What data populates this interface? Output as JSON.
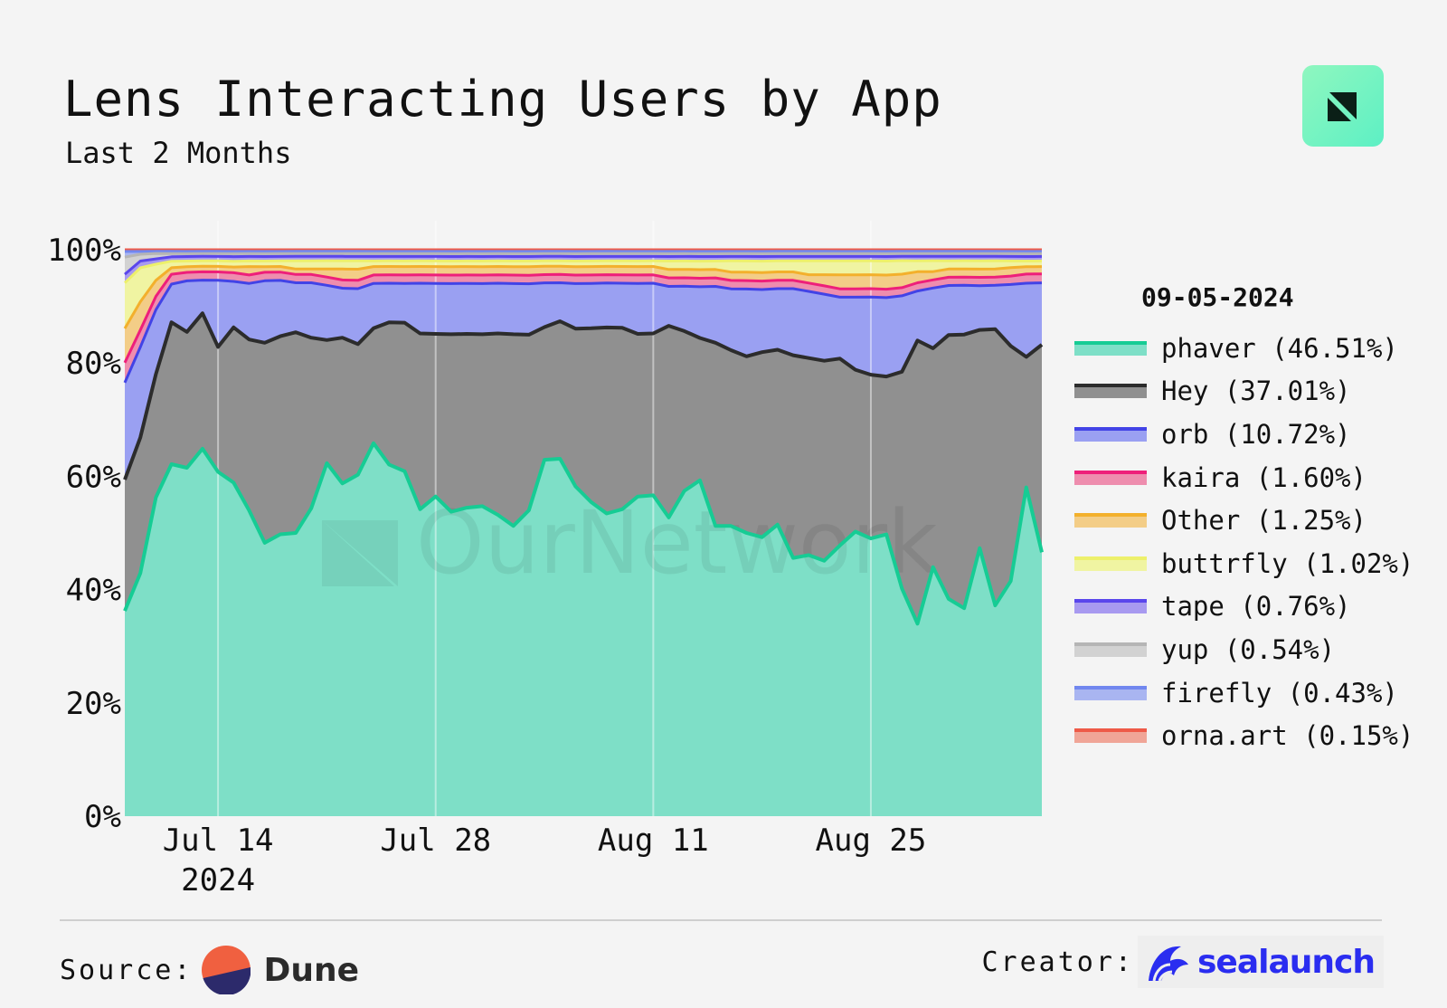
{
  "header": {
    "title": "Lens Interacting Users by App",
    "subtitle": "Last 2 Months"
  },
  "chart_data": {
    "type": "area",
    "stacked": true,
    "normalized": true,
    "watermark": "OurNetwork",
    "y_ticks": [
      "0%",
      "20%",
      "40%",
      "60%",
      "80%",
      "100%"
    ],
    "ylim": [
      0,
      100
    ],
    "x_start": "2024-07-08",
    "x_end": "2024-09-05",
    "x_ticks": [
      {
        "day": 6,
        "label": "Jul 14",
        "sub": "2024"
      },
      {
        "day": 20,
        "label": "Jul 28",
        "sub": ""
      },
      {
        "day": 34,
        "label": "Aug 11",
        "sub": ""
      },
      {
        "day": 48,
        "label": "Aug 25",
        "sub": ""
      }
    ],
    "legend_title": "09-05-2024",
    "series": [
      {
        "name": "phaver",
        "label": "phaver (46.51%)",
        "line": "#16cc94",
        "fill": "#7edfc7",
        "values": [
          36,
          43,
          59.5,
          64.5,
          61.5,
          66.5,
          62,
          58,
          54.5,
          48.5,
          50.5,
          51.5,
          56,
          64.5,
          60.5,
          61.5,
          66.5,
          63,
          61.5,
          55,
          57,
          54,
          55,
          55,
          54,
          51.5,
          54,
          64.5,
          65,
          58.5,
          56,
          54.5,
          55,
          57,
          57.5,
          53,
          58,
          59,
          51.5,
          52,
          50.5,
          49,
          52.5,
          46.5,
          47,
          46,
          48.5,
          51,
          50,
          50,
          42,
          35,
          45.5,
          39.5,
          38,
          48.5,
          38.5,
          42,
          58,
          47
        ]
      },
      {
        "name": "Hey",
        "label": "Hey (37.01%)",
        "line": "#2c2c2c",
        "fill": "#909090",
        "values": [
          23,
          24,
          23,
          26,
          24,
          24.5,
          22.5,
          27,
          30.5,
          35.5,
          35.5,
          36.5,
          31,
          22.5,
          26.5,
          23.5,
          20.5,
          25.5,
          26.5,
          31.5,
          29,
          31.5,
          31,
          30.5,
          32.5,
          34,
          31,
          24,
          25,
          28,
          31,
          33.5,
          32.5,
          29,
          29,
          34,
          28.5,
          25,
          32.5,
          31.5,
          31.5,
          32.5,
          31.5,
          36.5,
          35.5,
          36,
          33.5,
          29,
          29.5,
          28,
          40,
          51.5,
          40,
          48,
          50,
          39.5,
          50.5,
          42,
          23,
          37
        ]
      },
      {
        "name": "orb",
        "label": "orb (10.72%)",
        "line": "#4243e6",
        "fill": "#9aa0f2",
        "values": [
          17,
          16,
          12,
          7,
          9,
          6,
          12,
          8,
          10,
          11,
          10,
          9,
          10,
          10,
          9,
          10,
          8,
          7,
          7,
          9,
          9,
          9,
          9,
          9,
          9,
          9,
          9,
          8,
          7,
          8,
          8,
          8,
          8,
          9,
          9,
          7,
          8,
          9,
          10,
          11,
          12,
          11,
          11,
          12,
          12,
          12,
          11,
          13,
          14,
          14,
          14,
          9,
          11,
          9,
          9,
          8,
          8,
          11,
          13,
          11
        ]
      },
      {
        "name": "kaira",
        "label": "kaira (1.60%)",
        "line": "#ee1f7a",
        "fill": "#ee8dae",
        "values": [
          3.5,
          3,
          2.5,
          1.8,
          1.5,
          1.5,
          1.5,
          1.5,
          1.5,
          1.5,
          1.5,
          1.5,
          1.5,
          1.5,
          1.5,
          1.5,
          1.5,
          1.5,
          1.5,
          1.5,
          1.5,
          1.5,
          1.5,
          1.5,
          1.5,
          1.5,
          1.5,
          1.5,
          1.5,
          1.5,
          1.5,
          1.5,
          1.5,
          1.5,
          1.5,
          1.5,
          1.5,
          1.5,
          1.5,
          1.5,
          1.5,
          1.5,
          1.5,
          1.5,
          1.5,
          1.5,
          1.5,
          1.5,
          1.5,
          1.5,
          1.5,
          1.5,
          1.5,
          1.5,
          1.5,
          1.5,
          1.5,
          1.5,
          1.6,
          1.6
        ]
      },
      {
        "name": "Other",
        "label": "Other (1.25%)",
        "line": "#f3b02c",
        "fill": "#f3cd87",
        "values": [
          6,
          5,
          3,
          1.2,
          1,
          1,
          1,
          1,
          1.5,
          1,
          1,
          1,
          1,
          1.5,
          2,
          2,
          1.5,
          1.5,
          1.5,
          1.5,
          1.5,
          1.5,
          1.5,
          1.5,
          1.5,
          1.5,
          1.5,
          1.5,
          1.5,
          1.5,
          1.5,
          1.5,
          1.5,
          1.5,
          1.5,
          1.5,
          1.5,
          1.5,
          1.5,
          1.5,
          1.5,
          1.5,
          1.5,
          1.5,
          1.5,
          2,
          2.5,
          2.5,
          2.5,
          2.5,
          2.5,
          2,
          1.5,
          1.5,
          1.5,
          1.5,
          1.5,
          1.5,
          1.3,
          1.3
        ]
      },
      {
        "name": "buttrfly",
        "label": "buttrfly (1.02%)",
        "line": "#edf06b",
        "fill": "#f0f4a2",
        "values": [
          8,
          6,
          3,
          1.2,
          1,
          1,
          1,
          1,
          1,
          1,
          1,
          1.5,
          1.5,
          1.5,
          1.5,
          1.5,
          1,
          1,
          1,
          1,
          1,
          1,
          1,
          1,
          1,
          1,
          1,
          1,
          1,
          1,
          1,
          1,
          1,
          1,
          1,
          1.5,
          1.5,
          1.5,
          1.5,
          2,
          2,
          2,
          2,
          2,
          2.5,
          2.5,
          2.5,
          2.5,
          2.5,
          2.5,
          2.5,
          2,
          2,
          1.5,
          1.5,
          1.5,
          1.5,
          1.2,
          1,
          1
        ]
      },
      {
        "name": "tape",
        "label": "tape (0.76%)",
        "line": "#5a46ec",
        "fill": "#a89af0",
        "values": [
          1.5,
          1.2,
          1,
          0.8,
          0.8,
          0.8,
          0.8,
          0.8,
          0.8,
          0.8,
          0.8,
          0.8,
          0.8,
          0.8,
          0.8,
          0.8,
          0.8,
          0.8,
          0.8,
          0.8,
          0.8,
          0.8,
          0.8,
          0.8,
          0.8,
          0.8,
          0.8,
          0.8,
          0.8,
          0.8,
          0.8,
          0.8,
          0.8,
          0.8,
          0.8,
          0.8,
          0.8,
          0.8,
          0.8,
          0.8,
          0.8,
          0.8,
          0.8,
          0.8,
          0.8,
          0.8,
          0.8,
          0.8,
          0.8,
          0.8,
          0.8,
          0.8,
          0.8,
          0.8,
          0.8,
          0.8,
          0.8,
          0.8,
          0.8,
          0.8
        ]
      },
      {
        "name": "yup",
        "label": "yup (0.54%)",
        "line": "#b5b5b5",
        "fill": "#d2d2d2",
        "values": [
          3,
          1.2,
          1,
          0.6,
          0.5,
          0.5,
          0.5,
          0.5,
          0.5,
          0.5,
          0.5,
          0.5,
          0.5,
          0.5,
          0.5,
          0.5,
          0.5,
          0.5,
          0.5,
          0.5,
          0.5,
          0.5,
          0.5,
          0.5,
          0.5,
          0.5,
          0.5,
          0.5,
          0.5,
          0.5,
          0.5,
          0.5,
          0.5,
          0.5,
          0.5,
          0.5,
          0.5,
          0.5,
          0.5,
          0.5,
          0.5,
          0.5,
          0.5,
          0.5,
          0.5,
          0.5,
          0.5,
          0.5,
          0.5,
          0.5,
          0.5,
          0.5,
          0.5,
          0.5,
          0.5,
          0.5,
          0.5,
          0.5,
          0.5,
          0.5
        ]
      },
      {
        "name": "firefly",
        "label": "firefly (0.43%)",
        "line": "#7187ef",
        "fill": "#a9b5f1",
        "values": [
          1,
          0.5,
          0.4,
          0.4,
          0.4,
          0.4,
          0.4,
          0.4,
          0.4,
          0.4,
          0.4,
          0.4,
          0.4,
          0.4,
          0.4,
          0.4,
          0.4,
          0.4,
          0.4,
          0.4,
          0.4,
          0.4,
          0.4,
          0.4,
          0.4,
          0.4,
          0.4,
          0.4,
          0.4,
          0.4,
          0.4,
          0.4,
          0.4,
          0.4,
          0.4,
          0.4,
          0.4,
          0.4,
          0.4,
          0.4,
          0.4,
          0.4,
          0.4,
          0.4,
          0.4,
          0.4,
          0.4,
          0.4,
          0.4,
          0.4,
          0.4,
          0.4,
          0.4,
          0.4,
          0.4,
          0.4,
          0.4,
          0.4,
          0.4,
          0.4
        ]
      },
      {
        "name": "orna.art",
        "label": "orna.art (0.15%)",
        "line": "#ee5a48",
        "fill": "#f0a597",
        "values": [
          0.3,
          0.3,
          0.3,
          0.3,
          0.3,
          0.3,
          0.3,
          0.3,
          0.3,
          0.3,
          0.3,
          0.3,
          0.3,
          0.3,
          0.3,
          0.3,
          0.3,
          0.3,
          0.3,
          0.3,
          0.3,
          0.3,
          0.3,
          0.3,
          0.3,
          0.3,
          0.3,
          0.3,
          0.3,
          0.3,
          0.3,
          0.3,
          0.3,
          0.3,
          0.3,
          0.3,
          0.3,
          0.3,
          0.3,
          0.3,
          0.3,
          0.3,
          0.3,
          0.3,
          0.3,
          0.3,
          0.3,
          0.3,
          0.3,
          0.3,
          0.3,
          0.3,
          0.3,
          0.3,
          0.3,
          0.3,
          0.3,
          0.3,
          0.3,
          0.3
        ]
      }
    ]
  },
  "footer": {
    "source_label": "Source:",
    "source_name": "Dune",
    "creator_label": "Creator:",
    "creator_name": "sealaunch"
  },
  "colors": {
    "background": "#f4f4f4",
    "sealaunch_blue": "#2a2df0",
    "dune_orange": "#f06040",
    "dune_navy": "#2c2a6b"
  },
  "icons": {
    "logo": "ournetwork-logo-icon",
    "dune": "dune-logo-icon",
    "sealaunch": "sealaunch-wave-icon"
  }
}
